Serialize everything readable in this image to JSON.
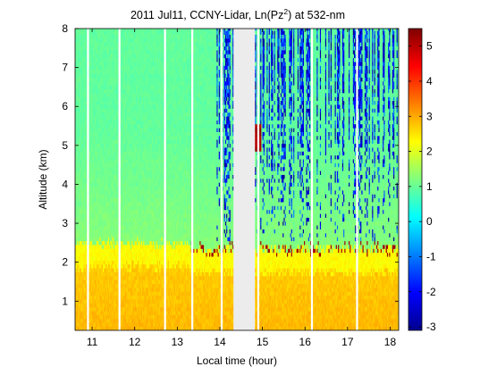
{
  "chart_data": {
    "type": "heatmap",
    "title_text": "2011 Jul11, CCNY-Lidar, Ln(Pz",
    "title_sup": "2",
    "title_suffix": ") at 532-nm",
    "xlabel": "Local time (hour)",
    "ylabel": "Altitude (km)",
    "xlim": [
      10.6,
      18.2
    ],
    "ylim": [
      0.25,
      8
    ],
    "xticks": [
      11,
      12,
      13,
      14,
      15,
      16,
      17,
      18
    ],
    "yticks": [
      1,
      2,
      3,
      4,
      5,
      6,
      7,
      8
    ],
    "colorbar": {
      "colormap": "jet",
      "range": [
        -3.1,
        5.5
      ],
      "ticks": [
        -3,
        -2,
        -1,
        0,
        1,
        2,
        3,
        4,
        5
      ]
    },
    "layers": [
      {
        "altitude_range": [
          0.25,
          1.6
        ],
        "value": 2.7
      },
      {
        "altitude_range": [
          1.6,
          2.4
        ],
        "value": 2.2
      },
      {
        "altitude_range": [
          2.4,
          4.0
        ],
        "value": 1.2
      },
      {
        "altitude_range": [
          4.0,
          8.0
        ],
        "value": 0.8
      }
    ],
    "no_data_gaps": [
      {
        "time_range": [
          14.32,
          14.82
        ]
      }
    ],
    "notes": "White vertical stripes mark missing profiles; noisy low values (-3 to -1) above 2.5 km after 14:00 local time; cloud layer near 5 km at 14.8 h."
  }
}
